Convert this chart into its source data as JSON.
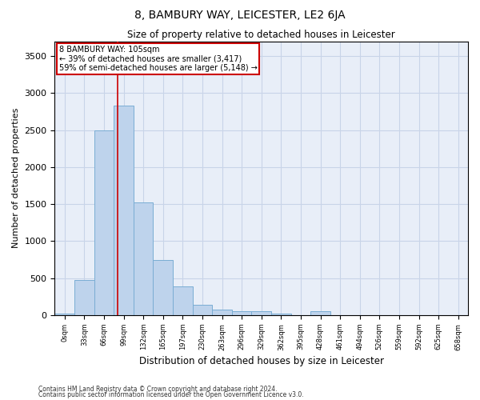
{
  "title": "8, BAMBURY WAY, LEICESTER, LE2 6JA",
  "subtitle": "Size of property relative to detached houses in Leicester",
  "xlabel": "Distribution of detached houses by size in Leicester",
  "ylabel": "Number of detached properties",
  "footnote1": "Contains HM Land Registry data © Crown copyright and database right 2024.",
  "footnote2": "Contains public sector information licensed under the Open Government Licence v3.0.",
  "bin_labels": [
    "0sqm",
    "33sqm",
    "66sqm",
    "99sqm",
    "132sqm",
    "165sqm",
    "197sqm",
    "230sqm",
    "263sqm",
    "296sqm",
    "329sqm",
    "362sqm",
    "395sqm",
    "428sqm",
    "461sqm",
    "494sqm",
    "526sqm",
    "559sqm",
    "592sqm",
    "625sqm",
    "658sqm"
  ],
  "bin_values": [
    25,
    470,
    2500,
    2830,
    1520,
    750,
    390,
    145,
    80,
    55,
    55,
    25,
    0,
    55,
    0,
    0,
    0,
    0,
    0,
    0,
    0
  ],
  "bar_color": "#bed3ec",
  "bar_edge_color": "#7aadd4",
  "grid_color": "#c8d4e8",
  "background_color": "#e8eef8",
  "red_line_x": 3.18,
  "red_line_color": "#cc0000",
  "annotation_box_text": "8 BAMBURY WAY: 105sqm\n← 39% of detached houses are smaller (3,417)\n59% of semi-detached houses are larger (5,148) →",
  "annotation_box_color": "#cc0000",
  "ylim": [
    0,
    3700
  ],
  "yticks": [
    0,
    500,
    1000,
    1500,
    2000,
    2500,
    3000,
    3500
  ]
}
